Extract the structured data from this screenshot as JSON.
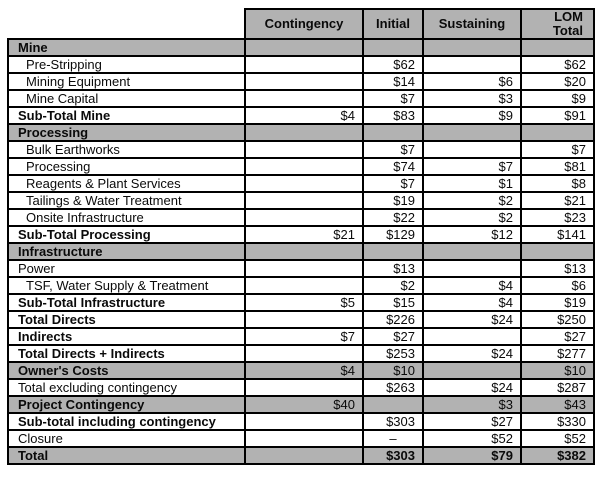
{
  "colors": {
    "header_gray": "#b2b2b2",
    "border": "#000000",
    "text": "#0a0a0a",
    "background": "#ffffff"
  },
  "table": {
    "columns": [
      {
        "label": "Contingency"
      },
      {
        "label": "Initial"
      },
      {
        "label": "Sustaining"
      },
      {
        "label": "LOM\nTotal"
      }
    ],
    "rows": [
      {
        "label": "Mine",
        "style": "section",
        "values": [
          "",
          "",
          "",
          ""
        ]
      },
      {
        "label": "Pre-Stripping",
        "style": "item",
        "values": [
          "",
          "$62",
          "",
          "$62"
        ]
      },
      {
        "label": "Mining Equipment",
        "style": "item",
        "values": [
          "",
          "$14",
          "$6",
          "$20"
        ]
      },
      {
        "label": "Mine Capital",
        "style": "item",
        "values": [
          "",
          "$7",
          "$3",
          "$9"
        ]
      },
      {
        "label": "Sub-Total Mine",
        "style": "bold",
        "values": [
          "$4",
          "$83",
          "$9",
          "$91"
        ]
      },
      {
        "label": "Processing",
        "style": "section",
        "values": [
          "",
          "",
          "",
          ""
        ]
      },
      {
        "label": "Bulk Earthworks",
        "style": "item",
        "values": [
          "",
          "$7",
          "",
          "$7"
        ]
      },
      {
        "label": "Processing",
        "style": "item",
        "values": [
          "",
          "$74",
          "$7",
          "$81"
        ]
      },
      {
        "label": "Reagents & Plant Services",
        "style": "item",
        "values": [
          "",
          "$7",
          "$1",
          "$8"
        ]
      },
      {
        "label": "Tailings & Water Treatment",
        "style": "item",
        "values": [
          "",
          "$19",
          "$2",
          "$21"
        ]
      },
      {
        "label": "Onsite Infrastructure",
        "style": "item",
        "values": [
          "",
          "$22",
          "$2",
          "$23"
        ]
      },
      {
        "label": "Sub-Total Processing",
        "style": "bold",
        "values": [
          "$21",
          "$129",
          "$12",
          "$141"
        ]
      },
      {
        "label": "Infrastructure",
        "style": "section",
        "values": [
          "",
          "",
          "",
          ""
        ]
      },
      {
        "label": "Power",
        "style": "plain",
        "values": [
          "",
          "$13",
          "",
          "$13"
        ]
      },
      {
        "label": "TSF, Water Supply & Treatment",
        "style": "item",
        "values": [
          "",
          "$2",
          "$4",
          "$6"
        ]
      },
      {
        "label": "Sub-Total Infrastructure",
        "style": "bold",
        "values": [
          "$5",
          "$15",
          "$4",
          "$19"
        ]
      },
      {
        "label": "Total Directs",
        "style": "bold",
        "values": [
          "",
          "$226",
          "$24",
          "$250"
        ]
      },
      {
        "label": "Indirects",
        "style": "bold",
        "values": [
          "$7",
          "$27",
          "",
          "$27"
        ]
      },
      {
        "label": "Total Directs + Indirects",
        "style": "bold",
        "values": [
          "",
          "$253",
          "$24",
          "$277"
        ]
      },
      {
        "label": "Owner's Costs",
        "style": "gray",
        "values": [
          "$4",
          "$10",
          "",
          "$10"
        ]
      },
      {
        "label": "Total excluding contingency",
        "style": "plain",
        "values": [
          "",
          "$263",
          "$24",
          "$287"
        ]
      },
      {
        "label": "Project Contingency",
        "style": "gray",
        "values": [
          "$40",
          "",
          "$3",
          "$43"
        ]
      },
      {
        "label": "Sub-total including contingency",
        "style": "bold",
        "values": [
          "",
          "$303",
          "$27",
          "$330"
        ]
      },
      {
        "label": "Closure",
        "style": "plain",
        "values": [
          "",
          "–",
          "$52",
          "$52"
        ]
      },
      {
        "label": "Total",
        "style": "total",
        "values": [
          "",
          "$303",
          "$79",
          "$382"
        ]
      }
    ]
  }
}
